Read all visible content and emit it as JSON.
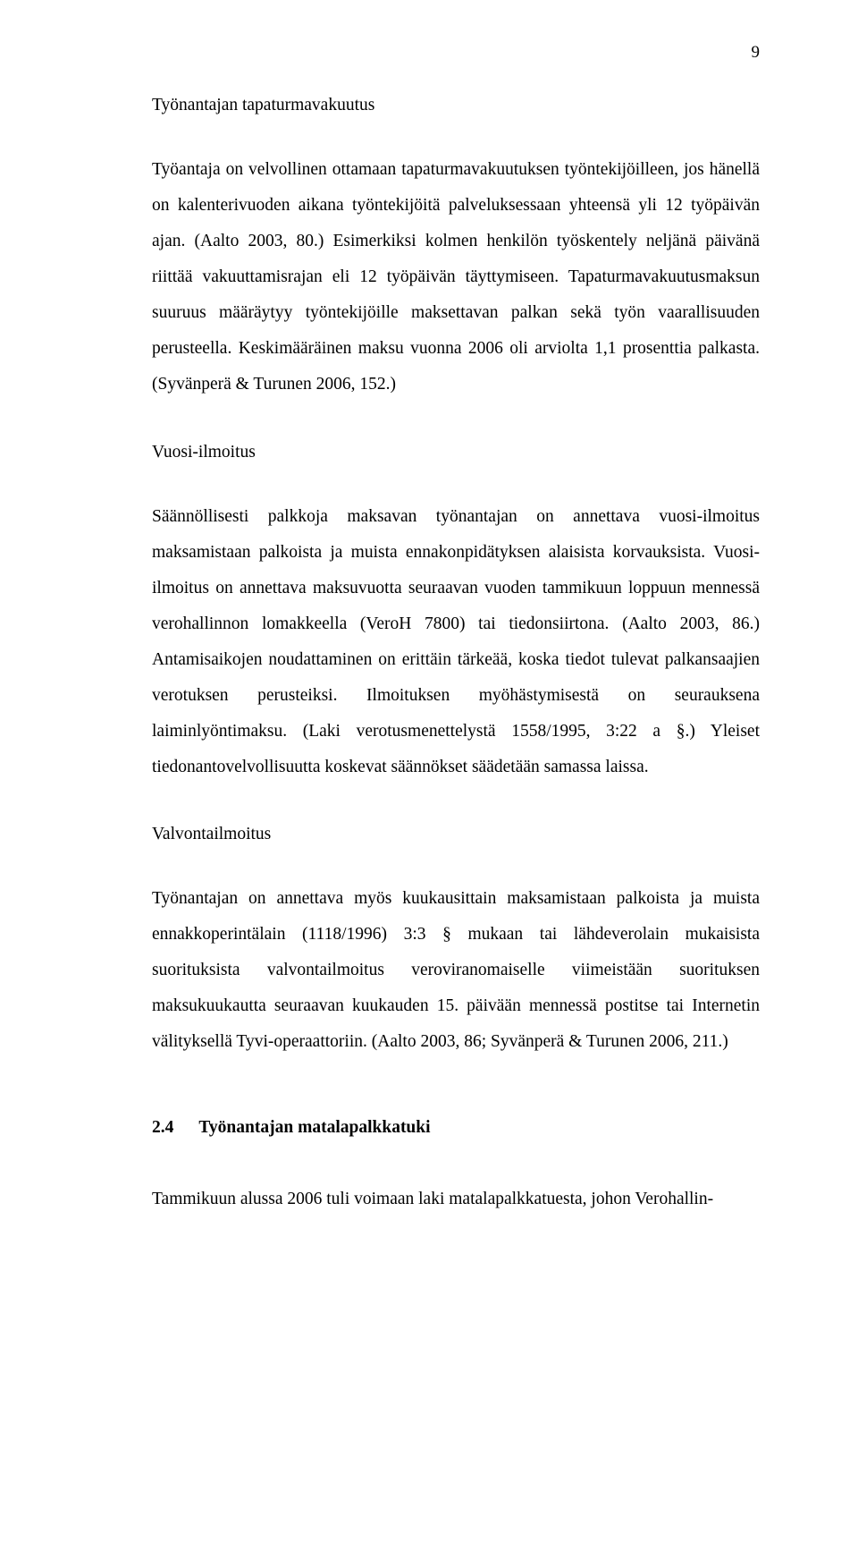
{
  "page": {
    "number": "9"
  },
  "h1": "Työnantajan tapaturmavakuutus",
  "p1": "Työantaja on velvollinen ottamaan tapaturmavakuutuksen työntekijöilleen, jos hänellä on kalenterivuoden aikana työntekijöitä palveluksessaan yhteensä yli 12 työpäivän ajan. (Aalto 2003, 80.) Esimerkiksi kolmen henkilön työskentely neljänä päivänä riittää vakuuttamisrajan eli 12 työpäivän täyttymiseen. Tapaturmavakuutusmaksun suuruus määräytyy työntekijöille maksettavan palkan sekä työn vaarallisuuden perusteella. Keskimääräinen maksu vuonna 2006 oli arviolta 1,1 prosenttia palkasta. (Syvänperä & Turunen 2006, 152.)",
  "h2": "Vuosi-ilmoitus",
  "p2": "Säännöllisesti palkkoja maksavan työnantajan on annettava vuosi-ilmoitus maksamistaan palkoista ja muista ennakonpidätyksen alaisista korvauksista. Vuosi-ilmoitus on annettava maksuvuotta seuraavan vuoden tammikuun loppuun mennessä verohallinnon lomakkeella (VeroH 7800) tai tiedonsiirtona. (Aalto 2003, 86.) Antamisaikojen noudattaminen on erittäin tärkeää, koska tiedot tulevat palkansaajien verotuksen perusteiksi. Ilmoituksen myöhästymisestä on seurauksena laiminlyöntimaksu. (Laki verotusmenettelystä 1558/1995, 3:22 a §.) Yleiset tiedonantovelvollisuutta koskevat säännökset säädetään samassa laissa.",
  "h3": "Valvontailmoitus",
  "p3": "Työnantajan on annettava myös kuukausittain maksamistaan palkoista ja muista ennakkoperintälain (1118/1996) 3:3 § mukaan tai lähdeverolain mukaisista suorituksista valvontailmoitus veroviranomaiselle viimeistään suorituksen maksukuukautta seuraavan kuukauden 15. päivään mennessä postitse tai Internetin välityksellä Tyvi-operaattoriin. (Aalto 2003, 86; Syvänperä & Turunen 2006, 211.)",
  "section": {
    "number": "2.4",
    "title": "Työnantajan matalapalkkatuki"
  },
  "p4": "Tammikuun alussa 2006 tuli voimaan laki matalapalkkatuesta, johon Verohallin-"
}
